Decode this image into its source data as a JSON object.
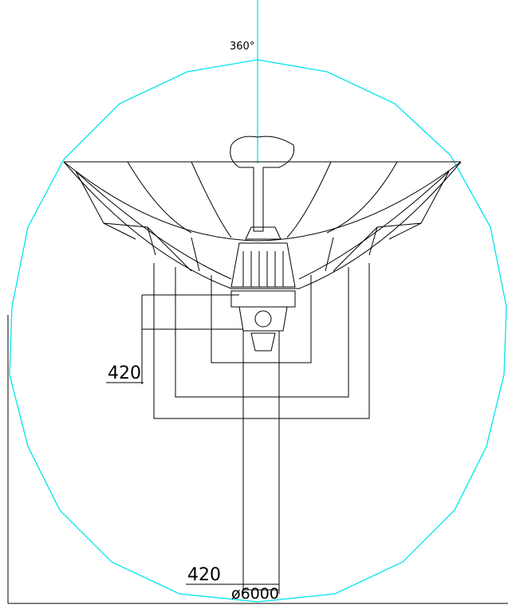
{
  "labels": {
    "angle": "360°",
    "dimension_left": "420",
    "dimension_bottom": "420",
    "diameter": "ø6000"
  }
}
